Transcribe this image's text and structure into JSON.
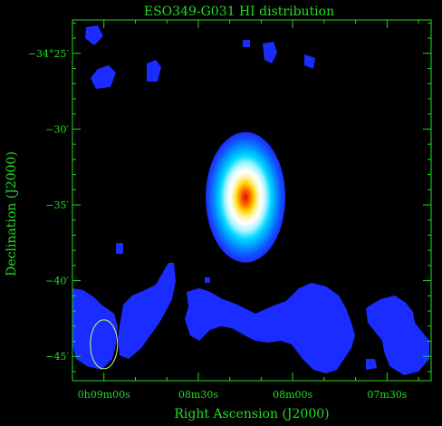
{
  "chart_data": {
    "type": "heatmap",
    "title": "ESO349-G031  HI distribution",
    "xlabel": "Right Ascension (J2000)",
    "ylabel": "Declination (J2000)",
    "colors": {
      "frame": "#22dd22",
      "background": "#000000",
      "noise": "#1a2cff",
      "peak": "#e01000"
    },
    "x_ticks": [
      {
        "label": "0h09m00s",
        "v": 0
      },
      {
        "label": "08m30s",
        "v": 30
      },
      {
        "label": "08m00s",
        "v": 60
      },
      {
        "label": "07m30s",
        "v": 90
      }
    ],
    "y_ticks": [
      {
        "label": "−34°25′",
        "v": -25
      },
      {
        "label": "−30′",
        "v": -30
      },
      {
        "label": "−35′",
        "v": -35
      },
      {
        "label": "−40′",
        "v": -40
      },
      {
        "label": "−45′",
        "v": -45
      }
    ],
    "xlim": [
      -10.0,
      104.0
    ],
    "ylim": [
      -46.6,
      -22.8
    ],
    "source": {
      "label": "ESO349-G031",
      "ra_offset_s": 45,
      "dec_arcmin": -34.5
    },
    "beam": {
      "ra_offset_s": 0,
      "dec_arcmin": -44.2
    }
  }
}
